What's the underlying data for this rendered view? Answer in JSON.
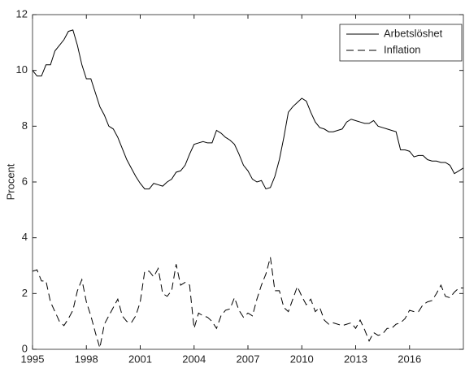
{
  "chart_data": {
    "type": "line",
    "ylabel": "Procent",
    "x": [
      1995,
      1995.25,
      1995.5,
      1995.75,
      1996,
      1996.25,
      1996.5,
      1996.75,
      1997,
      1997.25,
      1997.5,
      1997.75,
      1998,
      1998.25,
      1998.5,
      1998.75,
      1999,
      1999.25,
      1999.5,
      1999.75,
      2000,
      2000.25,
      2000.5,
      2000.75,
      2001,
      2001.25,
      2001.5,
      2001.75,
      2002,
      2002.25,
      2002.5,
      2002.75,
      2003,
      2003.25,
      2003.5,
      2003.75,
      2004,
      2004.25,
      2004.5,
      2004.75,
      2005,
      2005.25,
      2005.5,
      2005.75,
      2006,
      2006.25,
      2006.5,
      2006.75,
      2007,
      2007.25,
      2007.5,
      2007.75,
      2008,
      2008.25,
      2008.5,
      2008.75,
      2009,
      2009.25,
      2009.5,
      2009.75,
      2010,
      2010.25,
      2010.5,
      2010.75,
      2011,
      2011.25,
      2011.5,
      2011.75,
      2012,
      2012.25,
      2012.5,
      2012.75,
      2013,
      2013.25,
      2013.5,
      2013.75,
      2014,
      2014.25,
      2014.5,
      2014.75,
      2015,
      2015.25,
      2015.5,
      2015.75,
      2016,
      2016.25,
      2016.5,
      2016.75,
      2017,
      2017.25,
      2017.5,
      2017.75,
      2018,
      2018.25,
      2018.5,
      2018.75,
      2019
    ],
    "series": [
      {
        "name": "Arbetslöshet",
        "color": "#000000",
        "style": "solid",
        "values": [
          10.0,
          9.8,
          9.8,
          10.2,
          10.2,
          10.7,
          10.9,
          11.1,
          11.4,
          11.45,
          10.9,
          10.2,
          9.7,
          9.7,
          9.2,
          8.7,
          8.4,
          8.0,
          7.9,
          7.6,
          7.2,
          6.8,
          6.5,
          6.2,
          5.95,
          5.75,
          5.75,
          5.95,
          5.9,
          5.85,
          6.0,
          6.1,
          6.35,
          6.4,
          6.6,
          7.0,
          7.35,
          7.4,
          7.45,
          7.4,
          7.4,
          7.85,
          7.75,
          7.6,
          7.5,
          7.35,
          7.0,
          6.6,
          6.4,
          6.1,
          6.0,
          6.05,
          5.75,
          5.8,
          6.2,
          6.8,
          7.6,
          8.5,
          8.7,
          8.85,
          9.0,
          8.9,
          8.5,
          8.15,
          7.95,
          7.9,
          7.8,
          7.8,
          7.85,
          7.9,
          8.15,
          8.25,
          8.2,
          8.15,
          8.1,
          8.1,
          8.2,
          8.0,
          7.95,
          7.9,
          7.85,
          7.8,
          7.15,
          7.15,
          7.1,
          6.9,
          6.95,
          6.95,
          6.8,
          6.75,
          6.75,
          6.7,
          6.7,
          6.6,
          6.3,
          6.4,
          6.5
        ]
      },
      {
        "name": "Inflation",
        "color": "#000000",
        "style": "dashed",
        "values": [
          2.8,
          2.85,
          2.45,
          2.45,
          1.7,
          1.35,
          1.0,
          0.85,
          1.1,
          1.4,
          2.1,
          2.5,
          1.7,
          1.2,
          0.6,
          0.05,
          0.9,
          1.2,
          1.5,
          1.8,
          1.2,
          1.0,
          0.95,
          1.2,
          1.7,
          2.8,
          2.8,
          2.6,
          2.9,
          2.0,
          1.9,
          2.1,
          3.05,
          2.3,
          2.4,
          2.3,
          0.75,
          1.3,
          1.2,
          1.15,
          1.0,
          0.75,
          1.2,
          1.4,
          1.45,
          1.85,
          1.4,
          1.15,
          1.3,
          1.2,
          1.8,
          2.3,
          2.7,
          3.3,
          2.1,
          2.1,
          1.5,
          1.35,
          1.8,
          2.25,
          1.9,
          1.6,
          1.8,
          1.35,
          1.5,
          1.05,
          0.9,
          0.95,
          0.9,
          0.85,
          0.9,
          0.95,
          0.75,
          1.05,
          0.7,
          0.3,
          0.6,
          0.5,
          0.55,
          0.75,
          0.75,
          0.9,
          0.95,
          1.1,
          1.4,
          1.35,
          1.35,
          1.6,
          1.7,
          1.75,
          2.0,
          2.3,
          1.9,
          1.85,
          2.05,
          2.2,
          2.2
        ]
      }
    ],
    "xlim": [
      1995,
      2019
    ],
    "xticks": [
      1995,
      1998,
      2001,
      2004,
      2007,
      2010,
      2013,
      2016
    ],
    "ylim": [
      0,
      12
    ],
    "yticks": [
      0,
      2,
      4,
      6,
      8,
      10,
      12
    ],
    "legend": "northeast"
  }
}
